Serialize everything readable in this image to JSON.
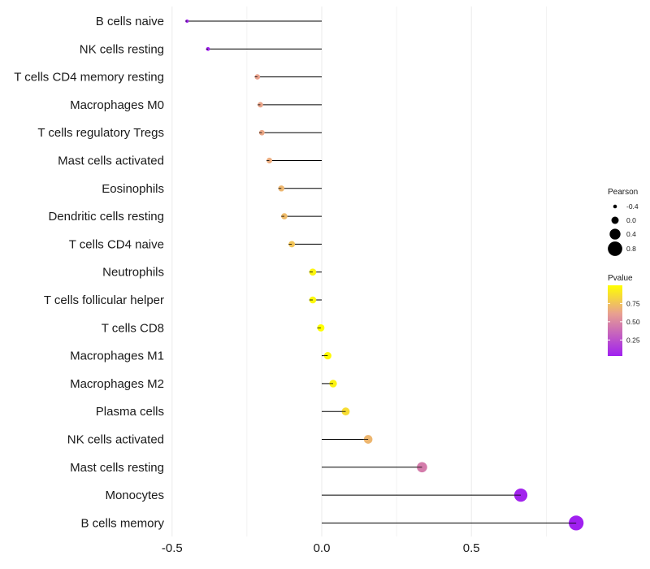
{
  "chart_data": {
    "type": "lollipop",
    "title": "",
    "xlabel": "",
    "ylabel": "",
    "xlim": [
      -0.5,
      0.85
    ],
    "x_ticks": [
      {
        "value": -0.5,
        "label": "-0.5"
      },
      {
        "value": 0.0,
        "label": "0.0"
      },
      {
        "value": 0.5,
        "label": "0.5"
      }
    ],
    "minor_gridlines": [
      -0.25,
      0.25,
      0.75
    ],
    "colors": {
      "low": "#a020f0",
      "mid": "#e8a090",
      "high": "#ffff00",
      "segment": "#000000",
      "grid": "#ebebeb"
    },
    "categories": [
      "B cells naive",
      "NK cells resting",
      "T cells CD4 memory resting",
      "Macrophages M0",
      "T cells regulatory  Tregs",
      "Mast cells activated",
      "Eosinophils",
      "Dendritic cells resting",
      "T cells CD4 naive",
      "Neutrophils",
      "T cells follicular helper",
      "T cells CD8",
      "Macrophages M1",
      "Macrophages M2",
      "Plasma cells",
      "NK cells activated",
      "Mast cells resting",
      "Monocytes",
      "B cells memory"
    ],
    "series": [
      {
        "name": "Pearson",
        "values": [
          -0.45,
          -0.38,
          -0.215,
          -0.205,
          -0.2,
          -0.175,
          -0.135,
          -0.125,
          -0.1,
          -0.03,
          -0.03,
          -0.003,
          0.02,
          0.038,
          0.08,
          0.155,
          0.335,
          0.665,
          0.85
        ]
      },
      {
        "name": "Pvalue",
        "values": [
          0.02,
          0.04,
          0.62,
          0.63,
          0.64,
          0.66,
          0.7,
          0.72,
          0.76,
          0.96,
          0.97,
          1.0,
          0.98,
          0.95,
          0.86,
          0.7,
          0.45,
          0.05,
          0.01
        ]
      }
    ],
    "legend": {
      "position": "right",
      "size_title": "Pearson",
      "size_items": [
        {
          "label": "-0.4",
          "value": -0.4
        },
        {
          "label": "0.0",
          "value": 0.0
        },
        {
          "label": "0.4",
          "value": 0.4
        },
        {
          "label": "0.8",
          "value": 0.8
        }
      ],
      "color_title": "Pvalue",
      "color_range": [
        0.03,
        1.0
      ],
      "color_ticks": [
        {
          "label": "0.75",
          "value": 0.75
        },
        {
          "label": "0.50",
          "value": 0.5
        },
        {
          "label": "0.25",
          "value": 0.25
        }
      ]
    }
  }
}
